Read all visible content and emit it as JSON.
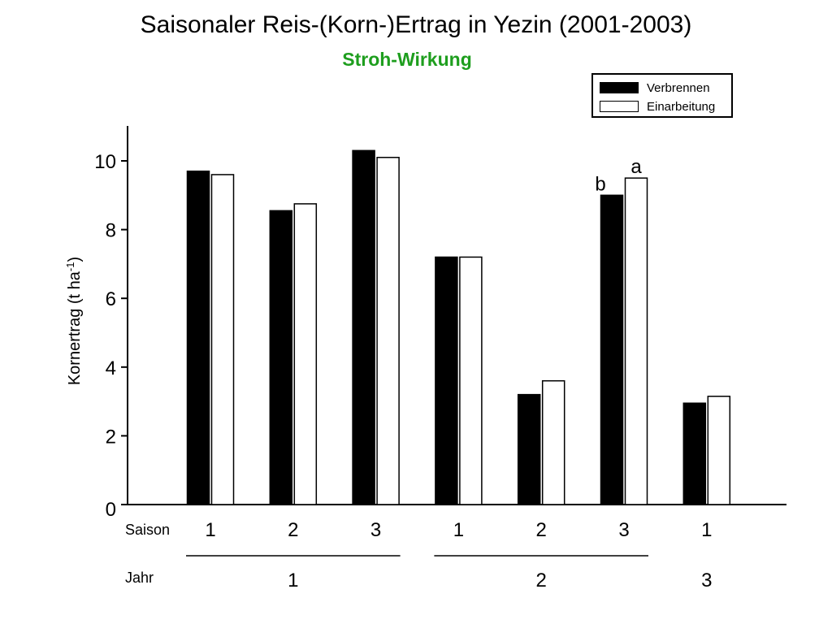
{
  "colors": {
    "burn": "#000000",
    "incorporate": "#ffffff",
    "subtitle": "#1e9e1e"
  },
  "chart_data": {
    "type": "bar",
    "title": "Saisonaler Reis-(Korn-)Ertrag in Yezin (2001-2003)",
    "subtitle": "Stroh-Wirkung",
    "ylabel": "Kornertrag (t ha-1)",
    "ylabel_main": "Kornertrag (t ha",
    "ylabel_sup": "-1",
    "ylabel_end": ")",
    "ylim": [
      0,
      11
    ],
    "yticks": [
      0,
      2,
      4,
      6,
      8,
      10
    ],
    "row_labels": {
      "season": "Saison",
      "year": "Jahr"
    },
    "seasons": [
      "1",
      "2",
      "3",
      "1",
      "2",
      "3",
      "1"
    ],
    "years": [
      {
        "label": "1",
        "start": 0,
        "end": 2
      },
      {
        "label": "2",
        "start": 3,
        "end": 5
      },
      {
        "label": "3",
        "start": 6,
        "end": 6
      }
    ],
    "series": [
      {
        "name": "Verbrennen",
        "values": [
          9.7,
          8.55,
          10.3,
          7.2,
          3.2,
          9.0,
          2.95
        ]
      },
      {
        "name": "Einarbeitung",
        "values": [
          9.6,
          8.75,
          10.1,
          7.2,
          3.6,
          9.5,
          3.15
        ]
      }
    ],
    "annotations": [
      {
        "category": 5,
        "series": 0,
        "text": "b"
      },
      {
        "category": 5,
        "series": 1,
        "text": "a"
      }
    ],
    "legend": "top-right",
    "grid": false
  }
}
